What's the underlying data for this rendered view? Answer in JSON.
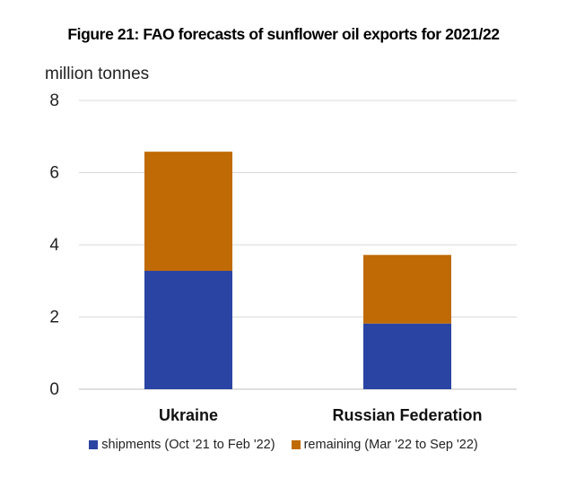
{
  "chart_data": {
    "type": "bar",
    "stacked": true,
    "title": "Figure 21: FAO forecasts of sunflower oil exports for 2021/22",
    "ylabel": "million tonnes",
    "categories": [
      "Ukraine",
      "Russian Federation"
    ],
    "series": [
      {
        "name": "shipments (Oct '21 to Feb '22)",
        "values": [
          3.28,
          1.82
        ],
        "color": "#2a44a3"
      },
      {
        "name": "remaining (Mar '22 to Sep '22)",
        "values": [
          3.3,
          1.9
        ],
        "color": "#c06a05"
      }
    ],
    "ylim": [
      0,
      8
    ],
    "yticks": [
      "0",
      "2",
      "4",
      "6",
      "8"
    ],
    "grid": true,
    "legend_position": "bottom"
  }
}
